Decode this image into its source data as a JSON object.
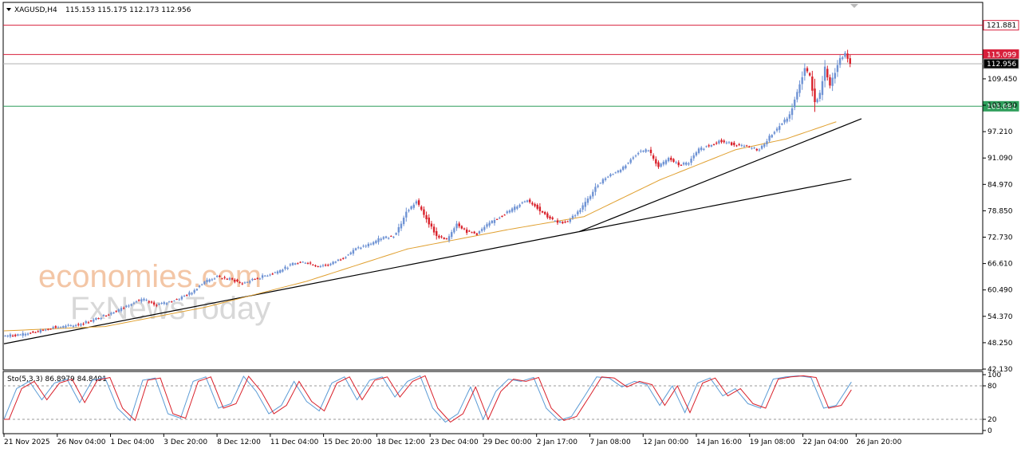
{
  "header": {
    "symbol": "XAGUSD,H4",
    "ohlc": "115.153 115.175 112.173 112.956"
  },
  "watermark": {
    "line1": "economies.com",
    "line2": "FxNewsToday"
  },
  "levels": [
    {
      "value": 121.881,
      "label": "121.881",
      "color": "#d8203c",
      "bg": "#ffffff",
      "fg": "#000000"
    },
    {
      "value": 115.099,
      "label": "115.099",
      "color": "#d8203c",
      "bg": "#d8203c",
      "fg": "#ffffff"
    },
    {
      "value": 112.956,
      "label": "112.956",
      "color": "#b0b0b0",
      "bg": "#000000",
      "fg": "#ffffff"
    },
    {
      "value": 103.091,
      "label": "103.091",
      "color": "#2e9e5b",
      "bg": "#2e9e5b",
      "fg": "#ffffff"
    }
  ],
  "colors": {
    "bull": "#6f93d4",
    "bear": "#d9202a",
    "ma": "#e0a030",
    "trend": "#000000",
    "sto_main": "#5b9bd5",
    "sto_signal": "#d9202a"
  },
  "stochastic": {
    "label": "Sto(5,3,3) 86.8979 84.8491",
    "axis": [
      "100",
      "80",
      "20",
      "0"
    ]
  },
  "chart_data": {
    "type": "candlestick",
    "symbol": "XAGUSD",
    "timeframe": "H4",
    "yticks": [
      "109.450",
      "103.330",
      "97.210",
      "91.090",
      "84.970",
      "78.850",
      "72.730",
      "66.610",
      "60.490",
      "54.370",
      "48.250",
      "42.130"
    ],
    "ylim": [
      42.13,
      127.0
    ],
    "xticks": [
      "21 Nov 2025",
      "26 Nov 04:00",
      "1 Dec 04:00",
      "3 Dec 20:00",
      "8 Dec 12:00",
      "11 Dec 04:00",
      "15 Dec 20:00",
      "18 Dec 12:00",
      "23 Dec 04:00",
      "29 Dec 00:00",
      "2 Jan 17:00",
      "7 Jan 08:00",
      "12 Jan 00:00",
      "14 Jan 16:00",
      "19 Jan 08:00",
      "22 Jan 04:00",
      "26 Jan 20:00"
    ],
    "price_path": [
      [
        0,
        49.8
      ],
      [
        8,
        50.2
      ],
      [
        15,
        51.0
      ],
      [
        20,
        51.8
      ],
      [
        25,
        52.0
      ],
      [
        30,
        52.5
      ],
      [
        36,
        53.5
      ],
      [
        40,
        54.5
      ],
      [
        44,
        55.5
      ],
      [
        48,
        56.4
      ],
      [
        52,
        57.8
      ],
      [
        56,
        58.2
      ],
      [
        60,
        57.0
      ],
      [
        65,
        57.5
      ],
      [
        70,
        58.5
      ],
      [
        75,
        60.0
      ],
      [
        80,
        62.5
      ],
      [
        85,
        63.5
      ],
      [
        90,
        63.0
      ],
      [
        95,
        62.0
      ],
      [
        100,
        63.0
      ],
      [
        105,
        64.0
      ],
      [
        110,
        65.0
      ],
      [
        115,
        66.5
      ],
      [
        120,
        67.0
      ],
      [
        125,
        66.0
      ],
      [
        130,
        66.5
      ],
      [
        135,
        68.0
      ],
      [
        140,
        70.0
      ],
      [
        145,
        71.0
      ],
      [
        150,
        72.5
      ],
      [
        155,
        73.0
      ],
      [
        158,
        76.0
      ],
      [
        160,
        78.5
      ],
      [
        164,
        81.0
      ],
      [
        168,
        77.0
      ],
      [
        172,
        73.0
      ],
      [
        176,
        72.0
      ],
      [
        180,
        76.0
      ],
      [
        184,
        74.0
      ],
      [
        188,
        73.5
      ],
      [
        192,
        75.5
      ],
      [
        196,
        77.0
      ],
      [
        200,
        78.5
      ],
      [
        204,
        80.0
      ],
      [
        208,
        81.5
      ],
      [
        212,
        79.5
      ],
      [
        216,
        77.5
      ],
      [
        220,
        76.0
      ],
      [
        224,
        76.5
      ],
      [
        228,
        78.5
      ],
      [
        232,
        81.5
      ],
      [
        236,
        85.0
      ],
      [
        240,
        87.0
      ],
      [
        244,
        88.0
      ],
      [
        248,
        90.0
      ],
      [
        252,
        92.5
      ],
      [
        256,
        93.0
      ],
      [
        260,
        89.0
      ],
      [
        264,
        91.0
      ],
      [
        268,
        89.5
      ],
      [
        272,
        90.0
      ],
      [
        276,
        93.0
      ],
      [
        280,
        94.0
      ],
      [
        284,
        95.0
      ],
      [
        288,
        94.5
      ],
      [
        292,
        94.0
      ],
      [
        296,
        93.5
      ],
      [
        300,
        93.0
      ],
      [
        304,
        96.0
      ],
      [
        308,
        98.5
      ],
      [
        312,
        101.0
      ],
      [
        316,
        108.0
      ],
      [
        318,
        112.0
      ],
      [
        320,
        110.0
      ],
      [
        322,
        104.0
      ],
      [
        324,
        106.0
      ],
      [
        326,
        112.0
      ],
      [
        328,
        108.0
      ],
      [
        330,
        111.0
      ],
      [
        332,
        114.0
      ],
      [
        334,
        115.2
      ],
      [
        336,
        112.956
      ]
    ],
    "moving_average": [
      [
        0,
        51.0
      ],
      [
        40,
        52.0
      ],
      [
        80,
        56.5
      ],
      [
        120,
        62.5
      ],
      [
        160,
        70.0
      ],
      [
        200,
        74.5
      ],
      [
        230,
        77.5
      ],
      [
        260,
        86.0
      ],
      [
        290,
        93.0
      ],
      [
        310,
        95.5
      ],
      [
        330,
        99.5
      ]
    ],
    "trendlines": [
      {
        "from": [
          0,
          48.0
        ],
        "to": [
          228,
          74.0
        ]
      },
      {
        "from": [
          228,
          74.0
        ],
        "to": [
          340,
          100.2
        ]
      },
      {
        "from": [
          228,
          74.0
        ],
        "to": [
          336,
          86.2
        ]
      }
    ],
    "stochastic_path": [
      [
        0,
        20
      ],
      [
        5,
        75
      ],
      [
        10,
        88
      ],
      [
        15,
        55
      ],
      [
        20,
        85
      ],
      [
        25,
        92
      ],
      [
        30,
        50
      ],
      [
        35,
        90
      ],
      [
        40,
        95
      ],
      [
        45,
        40
      ],
      [
        50,
        18
      ],
      [
        55,
        90
      ],
      [
        60,
        94
      ],
      [
        65,
        30
      ],
      [
        70,
        22
      ],
      [
        75,
        88
      ],
      [
        80,
        96
      ],
      [
        85,
        40
      ],
      [
        90,
        48
      ],
      [
        95,
        97
      ],
      [
        100,
        70
      ],
      [
        105,
        30
      ],
      [
        110,
        45
      ],
      [
        115,
        88
      ],
      [
        120,
        52
      ],
      [
        125,
        35
      ],
      [
        130,
        85
      ],
      [
        135,
        96
      ],
      [
        140,
        55
      ],
      [
        145,
        90
      ],
      [
        150,
        96
      ],
      [
        155,
        60
      ],
      [
        160,
        88
      ],
      [
        165,
        98
      ],
      [
        170,
        40
      ],
      [
        175,
        15
      ],
      [
        180,
        30
      ],
      [
        185,
        78
      ],
      [
        190,
        20
      ],
      [
        195,
        70
      ],
      [
        200,
        92
      ],
      [
        205,
        88
      ],
      [
        210,
        95
      ],
      [
        215,
        40
      ],
      [
        220,
        18
      ],
      [
        225,
        25
      ],
      [
        230,
        60
      ],
      [
        235,
        96
      ],
      [
        240,
        94
      ],
      [
        245,
        78
      ],
      [
        250,
        88
      ],
      [
        255,
        82
      ],
      [
        260,
        45
      ],
      [
        265,
        80
      ],
      [
        270,
        32
      ],
      [
        275,
        85
      ],
      [
        280,
        94
      ],
      [
        285,
        62
      ],
      [
        290,
        75
      ],
      [
        295,
        48
      ],
      [
        300,
        40
      ],
      [
        305,
        92
      ],
      [
        310,
        96
      ],
      [
        315,
        98
      ],
      [
        320,
        95
      ],
      [
        325,
        40
      ],
      [
        330,
        45
      ],
      [
        336,
        86.9
      ]
    ]
  }
}
